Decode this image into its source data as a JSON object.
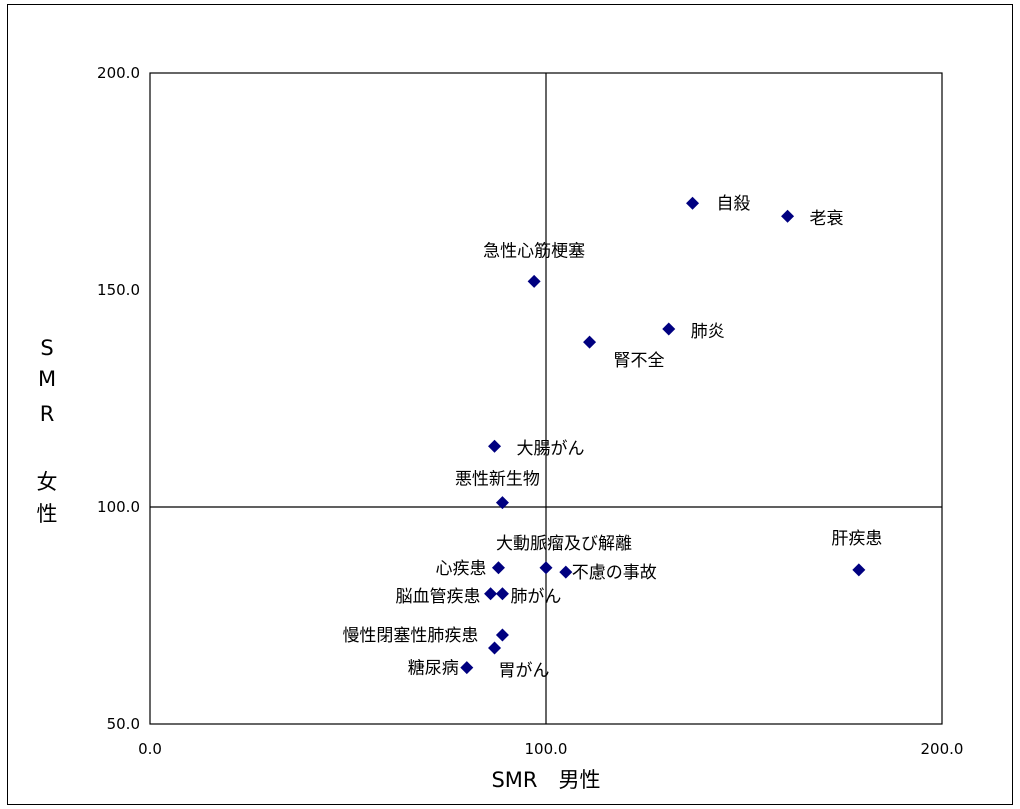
{
  "chart_data": {
    "type": "scatter",
    "title": "",
    "xlabel": "SMR　男性",
    "ylabel": [
      "S",
      "M",
      "R",
      "女",
      "性"
    ],
    "xlim": [
      0,
      200
    ],
    "ylim": [
      50,
      200
    ],
    "xticks": [
      0,
      100,
      200
    ],
    "yticks": [
      50,
      100,
      150,
      200
    ],
    "xtick_labels": [
      "0.0",
      "100.0",
      "200.0"
    ],
    "ytick_labels": [
      "50.0",
      "100.0",
      "150.0",
      "200.0"
    ],
    "reference_lines": {
      "x": 100,
      "y": 100
    },
    "grid": false,
    "legend": "none",
    "marker_color": "#000080",
    "points": [
      {
        "label": "自殺",
        "x": 137,
        "y": 170
      },
      {
        "label": "老衰",
        "x": 161,
        "y": 167
      },
      {
        "label": "急性心筋梗塞",
        "x": 97,
        "y": 152
      },
      {
        "label": "肺炎",
        "x": 131,
        "y": 141
      },
      {
        "label": "腎不全",
        "x": 111,
        "y": 138
      },
      {
        "label": "大腸がん",
        "x": 87,
        "y": 114
      },
      {
        "label": "悪性新生物",
        "x": 89,
        "y": 101
      },
      {
        "label": "大動脈瘤及び解離",
        "x": 100,
        "y": 86
      },
      {
        "label": "心疾患",
        "x": 88,
        "y": 86
      },
      {
        "label": "不慮の事故",
        "x": 105,
        "y": 85
      },
      {
        "label": "肝疾患",
        "x": 179,
        "y": 85.5
      },
      {
        "label": "脳血管疾患",
        "x": 86,
        "y": 80
      },
      {
        "label": "肺がん",
        "x": 89,
        "y": 80
      },
      {
        "label": "慢性閉塞性肺疾患",
        "x": 89,
        "y": 70.5
      },
      {
        "label": "胃がん",
        "x": 87,
        "y": 67.5
      },
      {
        "label": "糖尿病",
        "x": 80,
        "y": 63
      }
    ]
  }
}
